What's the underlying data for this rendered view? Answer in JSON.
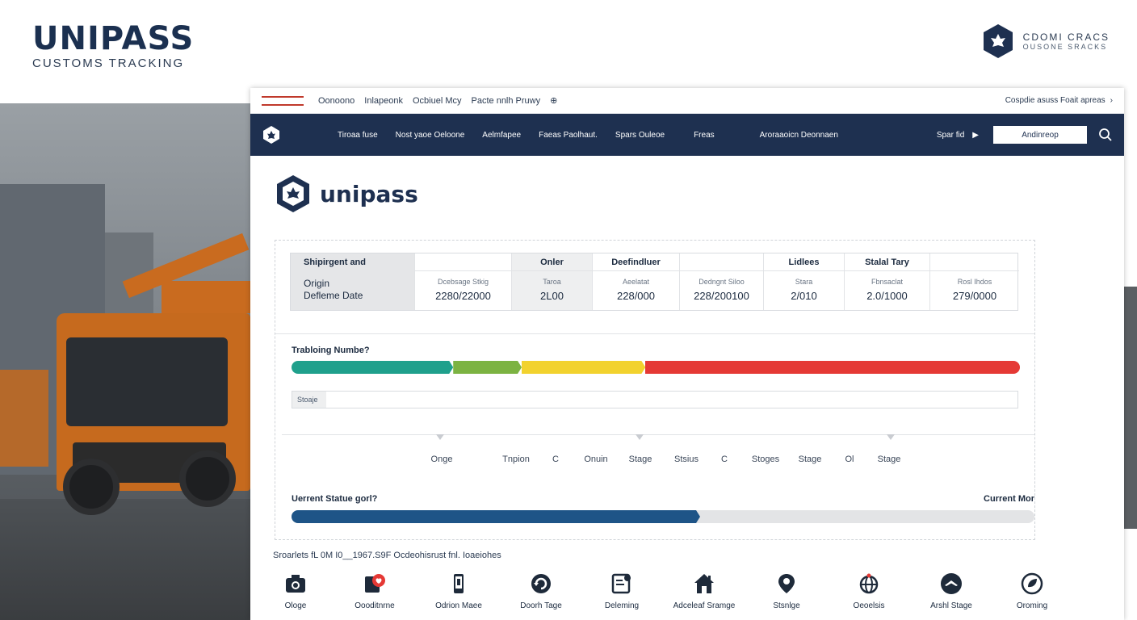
{
  "brand": {
    "title": "UNIPASS",
    "subtitle": "CUSTOMS TRACKING"
  },
  "corner": {
    "line1": "CDOMI CRACS",
    "line2": "OUSONE SRACKS"
  },
  "topbar": {
    "links": [
      "Oonoono",
      "Inlapeonk",
      "Ocbiuel Mcy",
      "Pacte nnlh Pruwy"
    ],
    "right": "Cospdie asuss Foait apreas"
  },
  "nav": {
    "items": [
      "Tiroaa fuse",
      "Nost yaoe Oeloone",
      "Aelmfapee",
      "Faeas Paolhaut.",
      "Spars Ouleoe",
      "Freas",
      "Aroraaoicn Deonnaen"
    ],
    "spare": "Spar fid",
    "search_value": "Andinreop"
  },
  "page": {
    "title": "unipass"
  },
  "summary": {
    "first": {
      "header": "Shipirgent and",
      "row1": "Origin",
      "row2": "Defleme Date"
    },
    "columns": [
      {
        "header": "",
        "label": "Dcebsage Stkig",
        "value": "2280/22000"
      },
      {
        "header": "Onler",
        "label": "Taroa",
        "value": "2L00"
      },
      {
        "header": "Deefindluer",
        "label": "Aeelatat",
        "value": "228/000"
      },
      {
        "header": "",
        "label": "Dedngnt Siloo",
        "value": "228/200100"
      },
      {
        "header": "Lidlees",
        "label": "Stara",
        "value": "2/010"
      },
      {
        "header": "Stalal Tary",
        "label": "Fbnsaclat",
        "value": "2.0/1000"
      },
      {
        "header": "",
        "label": "Rosl Ihdos",
        "value": "279/0000"
      }
    ]
  },
  "tracking": {
    "label": "Trabloing Numbe?",
    "segments": [
      {
        "color": "#1fa08c",
        "share": 0.222
      },
      {
        "color": "#7cb342",
        "share": 0.094
      },
      {
        "color": "#f2d22e",
        "share": 0.17
      },
      {
        "color": "#e53935",
        "share": 0.514
      }
    ],
    "stage_label": "Stoaje"
  },
  "stages": [
    "Onge",
    "Tnpion",
    "C",
    "Onuin",
    "Stage",
    "Stsius",
    "C",
    "Stoges",
    "Stage",
    "Ol",
    "Stage"
  ],
  "current_status": {
    "label": "Uerrent Statue gorl?",
    "right": "Current Mor",
    "progress": 0.55
  },
  "footnote": "Sroarlets fL 0M I0__1967.S9F Ocdeohisrust fnl. Ioaeiohes",
  "icons": [
    {
      "name": "camera-icon",
      "label": "Ologe"
    },
    {
      "name": "alert-icon",
      "label": "Oooditnrne"
    },
    {
      "name": "phone-icon",
      "label": "Odrion Maee"
    },
    {
      "name": "refresh-icon",
      "label": "Doorh Tage"
    },
    {
      "name": "document-icon",
      "label": "Deleming"
    },
    {
      "name": "house-icon",
      "label": "Adceleaf Sramge"
    },
    {
      "name": "location-pin-icon",
      "label": "Stsnlge"
    },
    {
      "name": "globe-icon",
      "label": "Oeoelsis"
    },
    {
      "name": "plane-icon",
      "label": "Arshl Stage"
    },
    {
      "name": "leaf-icon",
      "label": "Oroming"
    }
  ]
}
